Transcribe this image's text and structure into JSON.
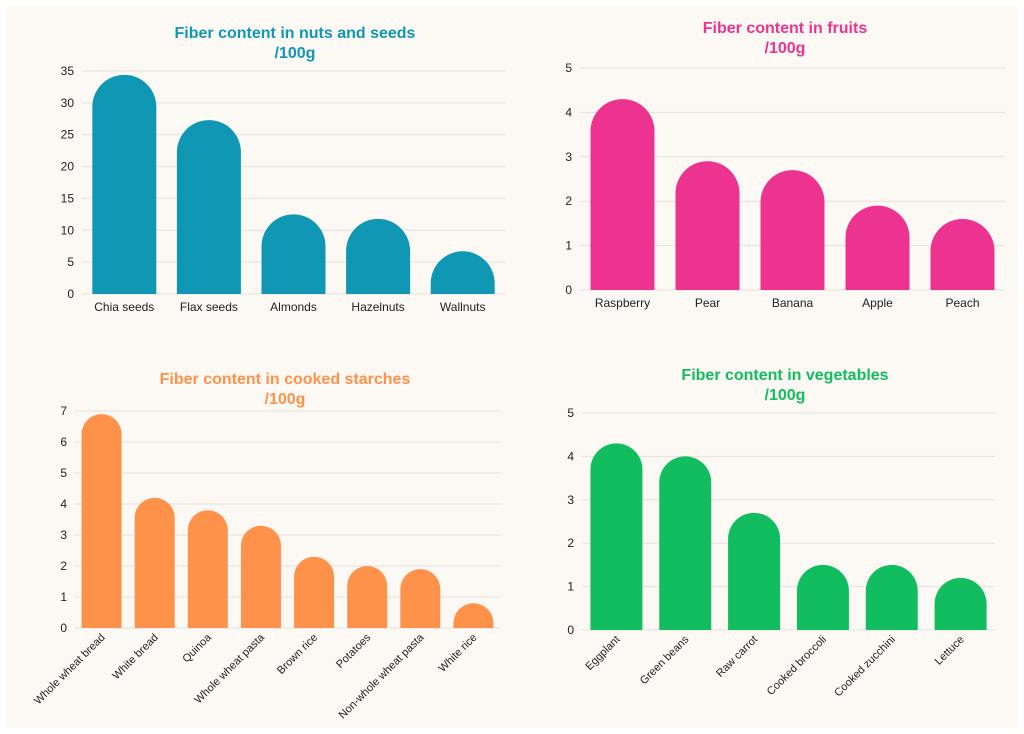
{
  "charts": [
    {
      "title_line1": "Fiber content in nuts and seeds",
      "title_line2": "/100g",
      "color": "#0f97b3",
      "chart_data": {
        "type": "bar",
        "categories": [
          "Chia seeds",
          "Flax seeds",
          "Almonds",
          "Hazelnuts",
          "Wallnuts"
        ],
        "values": [
          34.4,
          27.3,
          12.5,
          11.8,
          6.7
        ],
        "ylim": [
          0,
          35
        ],
        "yticks": [
          0,
          5,
          10,
          15,
          20,
          25,
          30,
          35
        ],
        "grid": true
      }
    },
    {
      "title_line1": "Fiber content in fruits",
      "title_line2": "/100g",
      "color": "#ec338f",
      "chart_data": {
        "type": "bar",
        "categories": [
          "Raspberry",
          "Pear",
          "Banana",
          "Apple",
          "Peach"
        ],
        "values": [
          4.3,
          2.9,
          2.7,
          1.9,
          1.6
        ],
        "ylim": [
          0,
          5
        ],
        "yticks": [
          0,
          1,
          2,
          3,
          4,
          5
        ],
        "grid": true
      }
    },
    {
      "title_line1": "Fiber content in cooked starches",
      "title_line2": "/100g",
      "color": "#ff924b",
      "chart_data": {
        "type": "bar",
        "categories": [
          "Whole wheat bread",
          "White bread",
          "Quinoa",
          "Whole wheat pasta",
          "Brown rice",
          "Potatoes",
          "Non-whole wheat pasta",
          "White rice"
        ],
        "values": [
          6.9,
          4.2,
          3.8,
          3.3,
          2.3,
          2.0,
          1.9,
          0.8
        ],
        "ylim": [
          0,
          7
        ],
        "yticks": [
          0,
          1,
          2,
          3,
          4,
          5,
          6,
          7
        ],
        "grid": true
      }
    },
    {
      "title_line1": "Fiber content in vegetables",
      "title_line2": "/100g",
      "color": "#12bd5f",
      "chart_data": {
        "type": "bar",
        "categories": [
          "Eggplant",
          "Green beans",
          "Raw carrot",
          "Cooked broccoli",
          "Cooked zucchini",
          "Lettuce"
        ],
        "values": [
          4.3,
          4.0,
          2.7,
          1.5,
          1.5,
          1.2
        ],
        "ylim": [
          0,
          5
        ],
        "yticks": [
          0,
          1,
          2,
          3,
          4,
          5
        ],
        "grid": true
      }
    }
  ]
}
